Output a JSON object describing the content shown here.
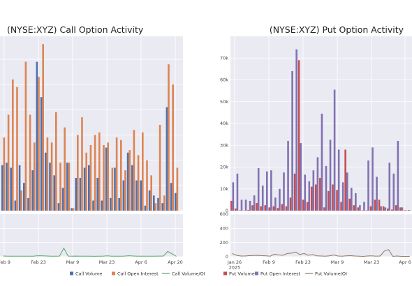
{
  "chart_data": [
    {
      "type": "bar",
      "title": "(NYSE:XYZ) Call Option Activity",
      "panel": "left",
      "x_tick_labels": [
        "Feb 9",
        "Feb 23",
        "Mar 9",
        "Mar 23",
        "Apr 6",
        "Apr 20"
      ],
      "categories": [
        "d1",
        "d2",
        "d3",
        "d4",
        "d5",
        "d6",
        "d7",
        "d8",
        "d9",
        "d10",
        "d11",
        "d12",
        "d13",
        "d14",
        "d15",
        "d16",
        "d17",
        "d18",
        "d19",
        "d20",
        "d21",
        "d22",
        "d23",
        "d24",
        "d25",
        "d26",
        "d27",
        "d28",
        "d29",
        "d30",
        "d31",
        "d32",
        "d33",
        "d34",
        "d35",
        "d36",
        "d37",
        "d38",
        "d39",
        "d40",
        "d41"
      ],
      "series": [
        {
          "name": "Call Volume",
          "color": "#4c72b0",
          "values": [
            18,
            19,
            17,
            4,
            18,
            11,
            5,
            16,
            59,
            45,
            23,
            19,
            14,
            3,
            9,
            19,
            1,
            13,
            13,
            17,
            18,
            4,
            13,
            4,
            25,
            5,
            17,
            5,
            12,
            23,
            18,
            12,
            12,
            2,
            8,
            6,
            5,
            3,
            41,
            11,
            7
          ]
        },
        {
          "name": "Call Open Interest",
          "color": "#dd8452",
          "values": [
            29,
            38,
            52,
            49,
            8,
            59,
            38,
            27,
            53,
            66,
            29,
            27,
            39,
            19,
            33,
            19,
            1,
            30,
            37,
            23,
            26,
            30,
            31,
            26,
            27,
            17,
            29,
            28,
            16,
            24,
            32,
            22,
            31,
            20,
            14,
            3,
            34,
            6,
            58,
            50,
            17
          ]
        }
      ],
      "lower_series": [
        {
          "name": "Call Volume/OI",
          "color": "#55a868",
          "values": [
            10,
            8,
            7,
            7,
            7,
            8,
            7,
            7,
            14,
            12,
            10,
            8,
            7,
            9,
            120,
            9,
            8,
            9,
            7,
            8,
            7,
            6,
            8,
            7,
            12,
            8,
            7,
            8,
            9,
            14,
            10,
            7,
            8,
            7,
            8,
            8,
            9,
            9,
            75,
            40,
            6
          ]
        }
      ],
      "lower_ylim": [
        0,
        600
      ]
    },
    {
      "type": "bar",
      "title": "(NYSE:XYZ) Put Option Activity",
      "panel": "right",
      "x_tick_labels": [
        "Jan 26\n2025",
        "Feb 9",
        "Feb 23",
        "Mar 9",
        "Mar 23",
        "Apr 6"
      ],
      "y_tick_labels": [
        "0",
        "10k",
        "20k",
        "30k",
        "40k",
        "50k",
        "60k",
        "70k"
      ],
      "lower_y_tick_labels": [
        "0",
        "200",
        "400",
        "600"
      ],
      "ylim": [
        0,
        80000
      ],
      "lower_ylim": [
        0,
        600
      ],
      "categories": [
        "d1",
        "d2",
        "d3",
        "d4",
        "d5",
        "d6",
        "d7",
        "d8",
        "d9",
        "d10",
        "d11",
        "d12",
        "d13",
        "d14",
        "d15",
        "d16",
        "d17",
        "d18",
        "d19",
        "d20",
        "d21",
        "d22",
        "d23",
        "d24",
        "d25",
        "d26",
        "d27",
        "d28",
        "d29",
        "d30",
        "d31",
        "d32",
        "d33",
        "d34",
        "d35",
        "d36",
        "d37",
        "d38",
        "d39",
        "d40",
        "d41",
        "d42",
        "d43"
      ],
      "series": [
        {
          "name": "Put Volume",
          "color": "#c44e52",
          "values": [
            4500,
            1000,
            200,
            100,
            300,
            2500,
            3500,
            2000,
            2500,
            1500,
            2000,
            1200,
            3000,
            2000,
            6000,
            17000,
            69000,
            5000,
            4000,
            11000,
            12000,
            15000,
            1500,
            9000,
            12000,
            9500,
            4000,
            28000,
            5500,
            2500,
            1500,
            200,
            200,
            2000,
            5000,
            5000,
            2000,
            1000,
            500,
            2500,
            1500,
            200,
            300
          ]
        },
        {
          "name": "Put Open Interest",
          "color": "#8172b2",
          "values": [
            13000,
            17000,
            5000,
            5000,
            4500,
            7000,
            19500,
            11500,
            18000,
            18500,
            6000,
            10000,
            17500,
            32000,
            64000,
            74000,
            31000,
            16500,
            13500,
            18500,
            24500,
            44500,
            20500,
            32500,
            55500,
            28000,
            13000,
            17500,
            10500,
            8000,
            2500,
            4000,
            23000,
            29000,
            15500,
            2000,
            1500,
            22000,
            17000,
            32000,
            1500,
            200,
            100
          ]
        }
      ],
      "lower_series": [
        {
          "name": "Put Volume/OI",
          "color": "#937860",
          "values": [
            45,
            20,
            10,
            10,
            15,
            18,
            20,
            15,
            12,
            8,
            35,
            25,
            20,
            45,
            50,
            65,
            30,
            45,
            20,
            30,
            12,
            10,
            8,
            12,
            25,
            10,
            8,
            12,
            15,
            10,
            8,
            5,
            10,
            12,
            8,
            10,
            80,
            100,
            5,
            10,
            5,
            5,
            5
          ]
        }
      ]
    }
  ],
  "legend": {
    "items": [
      {
        "label": "Call Volume",
        "color": "#4c72b0",
        "kind": "bar"
      },
      {
        "label": "Call Open Interest",
        "color": "#dd8452",
        "kind": "bar"
      },
      {
        "label": "Call Volume/OI",
        "color": "#55a868",
        "kind": "line"
      },
      {
        "label": "Put Volume",
        "color": "#c44e52",
        "kind": "bar"
      },
      {
        "label": "Put Open Interest",
        "color": "#8172b2",
        "kind": "bar"
      },
      {
        "label": "Put Volume/OI",
        "color": "#937860",
        "kind": "line"
      }
    ]
  },
  "style": {
    "plot_bg": "#eaeaf2",
    "grid": "#ffffff"
  }
}
